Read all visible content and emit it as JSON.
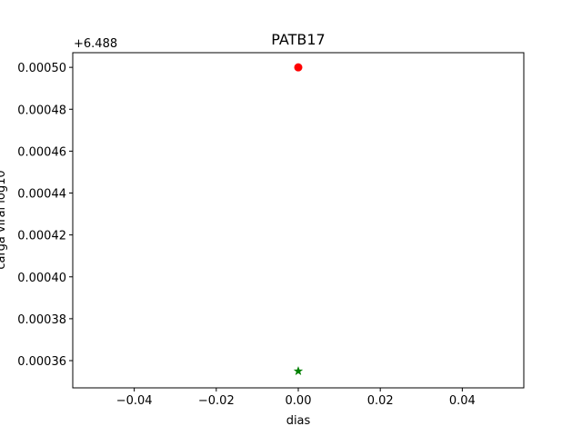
{
  "chart_data": {
    "type": "scatter",
    "title": "PATB17",
    "xlabel": "dias",
    "ylabel": "carga viral log10",
    "y_offset_label": "+6.488",
    "xlim": [
      -0.055,
      0.055
    ],
    "ylim": [
      0.000347,
      0.000507
    ],
    "x_ticks": [
      -0.04,
      -0.02,
      0.0,
      0.02,
      0.04
    ],
    "x_tick_labels": [
      "−0.04",
      "−0.02",
      "0.00",
      "0.02",
      "0.04"
    ],
    "y_ticks": [
      0.00036,
      0.00038,
      0.0004,
      0.00042,
      0.00044,
      0.00046,
      0.00048,
      0.0005
    ],
    "y_tick_labels": [
      "0.00036",
      "0.00038",
      "0.00040",
      "0.00042",
      "0.00044",
      "0.00046",
      "0.00048",
      "0.00050"
    ],
    "grid": false,
    "series": [
      {
        "marker": "circle",
        "color": "#ff0000",
        "points": [
          {
            "x": 0.0,
            "y": 0.0005
          }
        ]
      },
      {
        "marker": "star",
        "color": "#008000",
        "points": [
          {
            "x": 0.0,
            "y": 0.000355
          }
        ]
      }
    ]
  }
}
